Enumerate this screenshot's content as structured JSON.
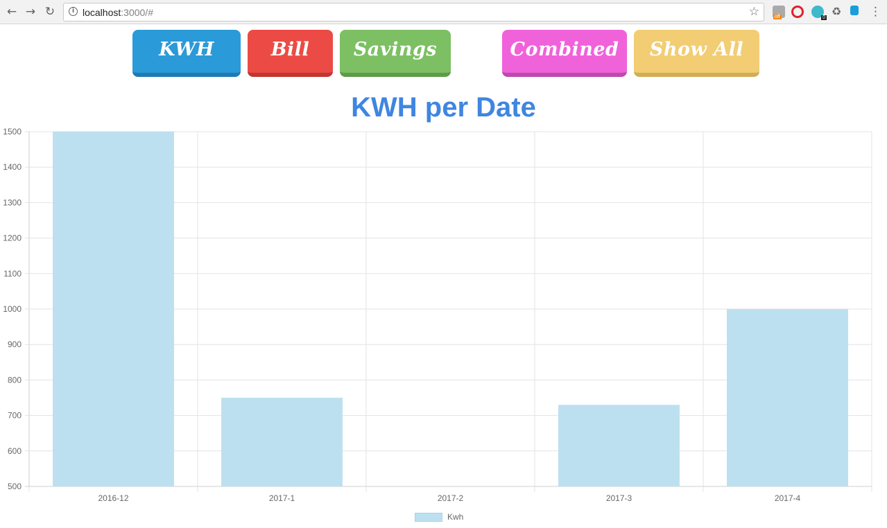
{
  "browser": {
    "url_host": "localhost",
    "url_rest": ":3000/#",
    "extensions": {
      "ext_a_badge": "off",
      "ext_c_badge": "0"
    }
  },
  "buttons": {
    "kwh": "KWH",
    "bill": "Bill",
    "savings": "Savings",
    "combined": "Combined",
    "show_all": "Show All"
  },
  "colors": {
    "kwh": "#2b9ad8",
    "bill": "#ec4b45",
    "savings": "#7cc063",
    "combined": "#f062da",
    "show_all": "#f2cd74",
    "title": "#3f86e0",
    "bar": "#bde0f0"
  },
  "chart_data": {
    "type": "bar",
    "title": "KWH per Date",
    "categories": [
      "2016-12",
      "2017-1",
      "2017-2",
      "2017-3",
      "2017-4"
    ],
    "series": [
      {
        "name": "Kwh",
        "values": [
          1500,
          750,
          null,
          730,
          1000
        ]
      }
    ],
    "ylim": [
      500,
      1500
    ],
    "yticks": [
      500,
      600,
      700,
      800,
      900,
      1000,
      1100,
      1200,
      1300,
      1400,
      1500
    ],
    "grid": true,
    "legend": "bottom"
  }
}
